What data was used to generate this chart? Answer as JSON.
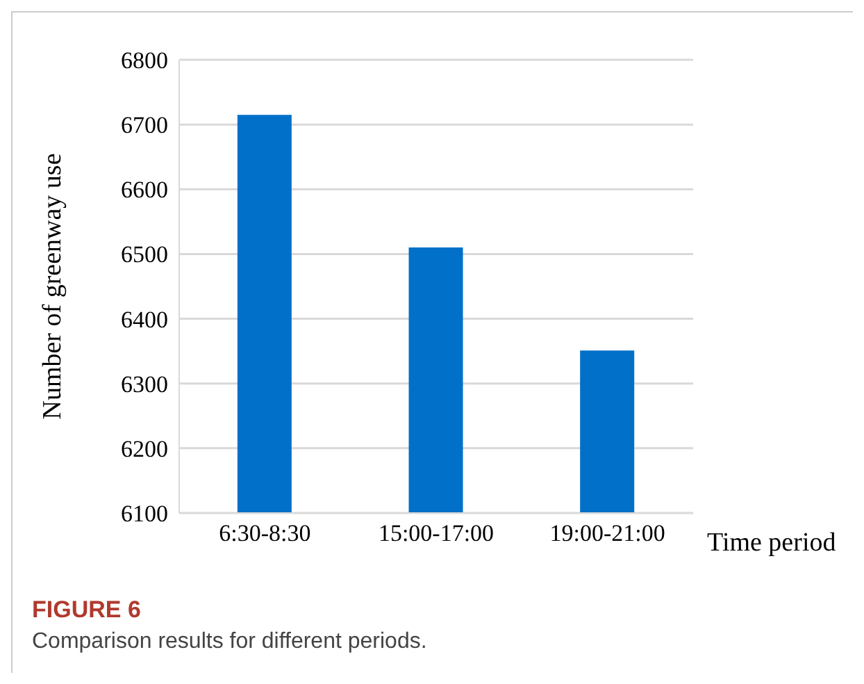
{
  "chart_data": {
    "type": "bar",
    "title": "FIGURE 6",
    "annotations": [
      "Comparison results for different periods."
    ],
    "xlabel": "Time period",
    "ylabel": "Number of greenway use",
    "categories": [
      "6:30-8:30",
      "15:00-17:00",
      "19:00-21:00"
    ],
    "values": [
      6715,
      6510,
      6351
    ],
    "color": "#0070c8",
    "ylim": [
      6100,
      6800
    ],
    "yticks": [
      6100,
      6200,
      6300,
      6400,
      6500,
      6600,
      6700,
      6800
    ],
    "grid": "y"
  }
}
